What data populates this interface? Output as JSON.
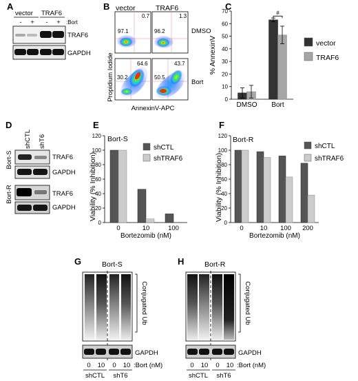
{
  "panels": {
    "A": {
      "letter": "A",
      "groups": [
        "vector",
        "TRAF6"
      ],
      "treatment_signs": [
        "-",
        "+",
        "-",
        "+"
      ],
      "treatment_label": ":Bort",
      "bands": [
        "TRAF6",
        "GAPDH"
      ]
    },
    "B": {
      "letter": "B",
      "columns": [
        "vector",
        "TRAF6"
      ],
      "rows": [
        "DMSO",
        "Bort"
      ],
      "y_label": "Propidium Iodide",
      "x_label": "AnnexinV-APC",
      "quadrants": [
        {
          "ul": "97.1",
          "ur": "0.7"
        },
        {
          "ul": "96.2",
          "ur": "1.3"
        },
        {
          "ll": "30.2",
          "lr": "64.6"
        },
        {
          "ll": "50.5",
          "lr": "43.7"
        }
      ]
    },
    "D": {
      "letter": "D",
      "lanes": [
        "shCTL",
        "shT6"
      ],
      "rows": [
        "Bort-S",
        "Bort-R"
      ],
      "bands": [
        "TRAF6",
        "GAPDH",
        "TRAF6",
        "GAPDH"
      ]
    },
    "G": {
      "letter": "G",
      "title": "Bort-S",
      "bracket_label": "Conjugated Ub",
      "loading": "GAPDH",
      "doses": [
        "0",
        "10",
        "0",
        "10"
      ],
      "dose_label": ":Bort (nM)",
      "groups": [
        "shCTL",
        "shT6"
      ]
    },
    "H": {
      "letter": "H",
      "title": "Bort-R",
      "bracket_label": "Conjugated Ub",
      "loading": "GAPDH",
      "doses": [
        "0",
        "10",
        "0",
        "10"
      ],
      "dose_label": ":Bort (nM)",
      "groups": [
        "shCTL",
        "shT6"
      ]
    }
  },
  "chart_data": [
    {
      "panel": "C",
      "letter": "C",
      "type": "bar",
      "categories": [
        "DMSO",
        "Bort"
      ],
      "series": [
        {
          "name": "vector",
          "values": [
            5,
            63
          ],
          "errors": [
            4,
            1.5
          ],
          "color": "#333333"
        },
        {
          "name": "TRAF6",
          "values": [
            6,
            51
          ],
          "errors": [
            5,
            7
          ],
          "color": "#a6a6a6"
        }
      ],
      "ylabel": "% AnnexinV",
      "ylim": [
        0,
        70
      ],
      "yticks": [
        "0",
        "10",
        "20",
        "30",
        "40",
        "50",
        "60",
        "70"
      ],
      "annotation": "#"
    },
    {
      "panel": "E",
      "letter": "E",
      "type": "bar",
      "title": "Bort-S",
      "categories": [
        "0",
        "10",
        "100"
      ],
      "series": [
        {
          "name": "shCTL",
          "values": [
            100,
            46,
            12
          ],
          "color": "#555555"
        },
        {
          "name": "shTRAF6",
          "values": [
            100,
            5,
            0
          ],
          "color": "#cccccc"
        }
      ],
      "xlabel": "Bortezomib (nM)",
      "ylabel": "Viability (% Inhibition)",
      "ylim": [
        0,
        120
      ],
      "yticks": [
        "0",
        "20",
        "40",
        "60",
        "80",
        "100",
        "120"
      ]
    },
    {
      "panel": "F",
      "letter": "F",
      "type": "bar",
      "title": "Bort-R",
      "categories": [
        "0",
        "10",
        "100",
        "200"
      ],
      "series": [
        {
          "name": "shCTL",
          "values": [
            100,
            98,
            92,
            82
          ],
          "color": "#555555"
        },
        {
          "name": "shTRAF6",
          "values": [
            100,
            90,
            63,
            38
          ],
          "color": "#cccccc"
        }
      ],
      "xlabel": "Bortezomib (nM)",
      "ylabel": "Viability (% Inhibition)",
      "ylim": [
        0,
        120
      ],
      "yticks": [
        "0",
        "20",
        "40",
        "60",
        "80",
        "100",
        "120"
      ]
    }
  ]
}
